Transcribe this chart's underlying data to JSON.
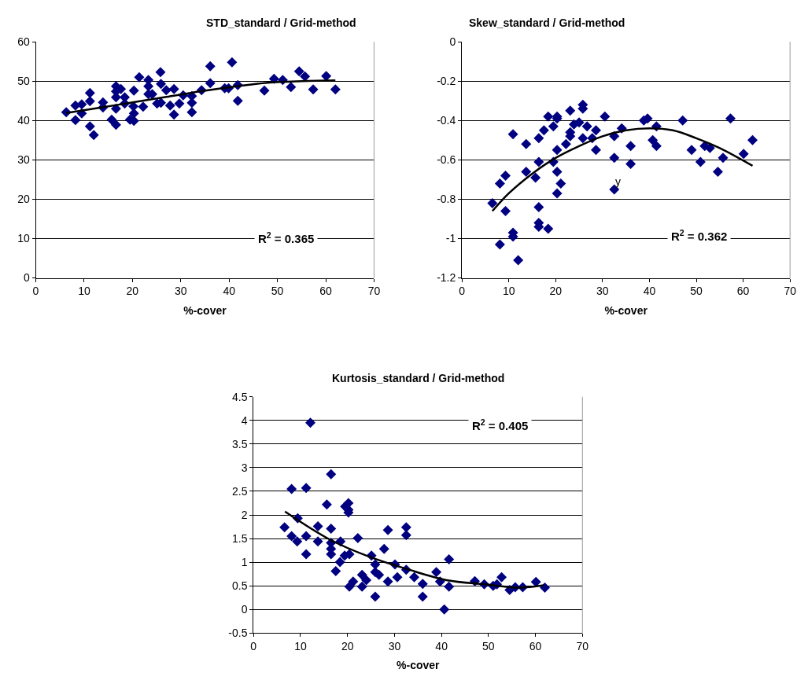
{
  "chart_data": [
    {
      "type": "scatter",
      "title": "STD_standard / Grid-method",
      "xlabel": "%-cover",
      "xlim": [
        0,
        70
      ],
      "xticks": [
        0,
        10,
        20,
        30,
        40,
        50,
        60,
        70
      ],
      "ylim": [
        0,
        60
      ],
      "yticks": [
        0,
        10,
        20,
        30,
        40,
        50,
        60
      ],
      "grid": "y",
      "marker": "diamond",
      "annotations": [
        "R$^{2}$ = 0.365"
      ],
      "series": [
        {
          "color": "#000080",
          "x": [
            6.3,
            8.2,
            8.2,
            9.5,
            9.5,
            11.2,
            11.2,
            11.2,
            12.0,
            13.9,
            13.9,
            15.7,
            16.6,
            16.6,
            16.6,
            16.6,
            16.6,
            17.6,
            18.4,
            18.4,
            19.5,
            20.2,
            20.3,
            20.3,
            20.3,
            21.4,
            22.2,
            23.3,
            23.3,
            23.3,
            24.1,
            25.1,
            25.8,
            25.9,
            25.9,
            27.0,
            27.8,
            28.6,
            28.6,
            29.7,
            30.5,
            32.3,
            32.3,
            32.3,
            34.3,
            36.1,
            36.1,
            39.1,
            39.9,
            40.6,
            41.8,
            41.8,
            47.3,
            49.3,
            51.1,
            52.8,
            54.5,
            55.7,
            57.4,
            60.1,
            62.0
          ],
          "values": [
            42.1,
            43.8,
            40.1,
            44.1,
            41.8,
            47.0,
            44.9,
            38.5,
            36.3,
            44.6,
            43.3,
            40.2,
            48.7,
            47.4,
            45.9,
            43.0,
            38.9,
            48.0,
            45.9,
            44.3,
            40.2,
            43.6,
            47.6,
            41.8,
            39.9,
            51.0,
            43.5,
            50.3,
            48.7,
            46.7,
            46.7,
            44.3,
            52.3,
            49.3,
            44.5,
            47.7,
            43.8,
            48.0,
            41.5,
            44.3,
            46.4,
            46.2,
            44.5,
            42.1,
            47.7,
            53.8,
            49.5,
            48.2,
            48.2,
            54.8,
            49.0,
            45.0,
            47.6,
            50.6,
            50.3,
            48.5,
            52.5,
            51.2,
            47.9,
            51.3,
            47.9
          ]
        },
        {
          "type": "line",
          "marker": "none",
          "color": "#000000",
          "line_style": "solid",
          "x": [
            6.3,
            13,
            20,
            27,
            34,
            41,
            48,
            55,
            62
          ],
          "values": [
            41.9,
            43.2,
            44.6,
            46.0,
            47.4,
            48.6,
            49.6,
            50.0,
            50.2
          ]
        }
      ]
    },
    {
      "type": "scatter",
      "title": "Skew_standard / Grid-method",
      "xlabel": "%-cover",
      "xlim": [
        0,
        70
      ],
      "xticks": [
        0,
        10,
        20,
        30,
        40,
        50,
        60,
        70
      ],
      "ylim": [
        -1.2,
        0
      ],
      "yticks": [
        -1.2,
        -1,
        -0.8,
        -0.6,
        -0.4,
        -0.2,
        0
      ],
      "grid": "y",
      "marker": "diamond",
      "annotations": [
        "R$^{2}$ = 0.362",
        "y"
      ],
      "series": [
        {
          "color": "#000080",
          "x": [
            6.5,
            8.1,
            8.1,
            9.3,
            9.3,
            10.9,
            10.9,
            10.9,
            12.0,
            13.7,
            13.7,
            15.7,
            16.4,
            16.4,
            16.4,
            16.4,
            16.4,
            17.5,
            18.4,
            18.4,
            19.5,
            19.5,
            20.3,
            20.3,
            20.3,
            20.3,
            20.3,
            21.1,
            22.2,
            23.1,
            23.1,
            23.1,
            23.9,
            25.0,
            25.8,
            25.8,
            25.8,
            26.7,
            27.8,
            28.6,
            28.6,
            30.5,
            32.5,
            32.5,
            32.5,
            34.1,
            36.0,
            36.0,
            38.8,
            39.6,
            40.7,
            41.5,
            41.5,
            47.1,
            49.0,
            50.9,
            51.8,
            52.9,
            54.6,
            55.7,
            57.3,
            60.1,
            62.0
          ],
          "values": [
            -0.82,
            -1.03,
            -0.72,
            -0.68,
            -0.86,
            -0.47,
            -0.97,
            -0.99,
            -1.11,
            -0.52,
            -0.66,
            -0.69,
            -0.49,
            -0.61,
            -0.84,
            -0.92,
            -0.94,
            -0.45,
            -0.38,
            -0.95,
            -0.43,
            -0.61,
            -0.38,
            -0.39,
            -0.55,
            -0.66,
            -0.77,
            -0.72,
            -0.52,
            -0.35,
            -0.46,
            -0.48,
            -0.42,
            -0.41,
            -0.32,
            -0.34,
            -0.49,
            -0.43,
            -0.49,
            -0.45,
            -0.55,
            -0.38,
            -0.48,
            -0.59,
            -0.75,
            -0.44,
            -0.53,
            -0.62,
            -0.4,
            -0.39,
            -0.5,
            -0.53,
            -0.43,
            -0.4,
            -0.55,
            -0.61,
            -0.53,
            -0.54,
            -0.66,
            -0.59,
            -0.39,
            -0.57,
            -0.5
          ]
        },
        {
          "type": "line",
          "marker": "none",
          "color": "#000000",
          "line_style": "solid",
          "x": [
            6.5,
            10,
            15,
            20,
            25,
            30,
            35,
            40,
            45,
            50,
            55,
            62
          ],
          "values": [
            -0.86,
            -0.77,
            -0.67,
            -0.59,
            -0.53,
            -0.48,
            -0.45,
            -0.44,
            -0.45,
            -0.49,
            -0.54,
            -0.63
          ]
        }
      ]
    },
    {
      "type": "scatter",
      "title": "Kurtosis_standard / Grid-method",
      "xlabel": "%-cover",
      "xlim": [
        0,
        70
      ],
      "xticks": [
        0,
        10,
        20,
        30,
        40,
        50,
        60,
        70
      ],
      "ylim": [
        -0.5,
        4.5
      ],
      "yticks": [
        -0.5,
        0,
        0.5,
        1,
        1.5,
        2,
        2.5,
        3,
        3.5,
        4,
        4.5
      ],
      "grid": "y",
      "marker": "diamond",
      "annotations": [
        "R$^{2}$ = 0.405"
      ],
      "series": [
        {
          "color": "#000080",
          "x": [
            12.1,
            16.5,
            8.1,
            11.2,
            15.6,
            20.2,
            19.5,
            20.2,
            20.2,
            6.6,
            9.4,
            13.7,
            16.5,
            28.6,
            32.5,
            32.5,
            8.1,
            11.2,
            9.3,
            13.7,
            16.5,
            18.5,
            22.2,
            16.5,
            16.5,
            11.2,
            27.8,
            19.4,
            20.4,
            18.4,
            25.1,
            17.5,
            25.9,
            30.1,
            32.5,
            23.1,
            24.0,
            25.9,
            26.7,
            30.6,
            34.2,
            38.9,
            41.6,
            28.6,
            36.0,
            39.7,
            21.2,
            20.4,
            23.1,
            41.6,
            25.9,
            36.0,
            40.6,
            47.1,
            49.1,
            51.0,
            51.8,
            52.8,
            54.5,
            55.7,
            57.3,
            60.1,
            62.0
          ],
          "values": [
            3.95,
            2.86,
            2.55,
            2.57,
            2.22,
            2.25,
            2.18,
            2.11,
            2.05,
            1.74,
            1.93,
            1.76,
            1.71,
            1.68,
            1.74,
            1.57,
            1.55,
            1.55,
            1.44,
            1.44,
            1.41,
            1.44,
            1.51,
            1.28,
            1.17,
            1.17,
            1.28,
            1.14,
            1.17,
            1.0,
            1.14,
            0.81,
            0.95,
            0.95,
            0.84,
            0.73,
            0.62,
            0.79,
            0.73,
            0.68,
            0.68,
            0.79,
            1.06,
            0.59,
            0.54,
            0.59,
            0.59,
            0.48,
            0.48,
            0.48,
            0.27,
            0.27,
            0.0,
            0.6,
            0.53,
            0.5,
            0.53,
            0.68,
            0.41,
            0.47,
            0.47,
            0.58,
            0.46
          ]
        },
        {
          "type": "line",
          "marker": "none",
          "color": "#000000",
          "line_style": "solid",
          "x": [
            6.7,
            16.2,
            24.5,
            32.8,
            41.1,
            49.3,
            56.5,
            61.8
          ],
          "values": [
            2.07,
            1.48,
            1.12,
            0.85,
            0.62,
            0.53,
            0.46,
            0.51
          ]
        }
      ]
    }
  ]
}
